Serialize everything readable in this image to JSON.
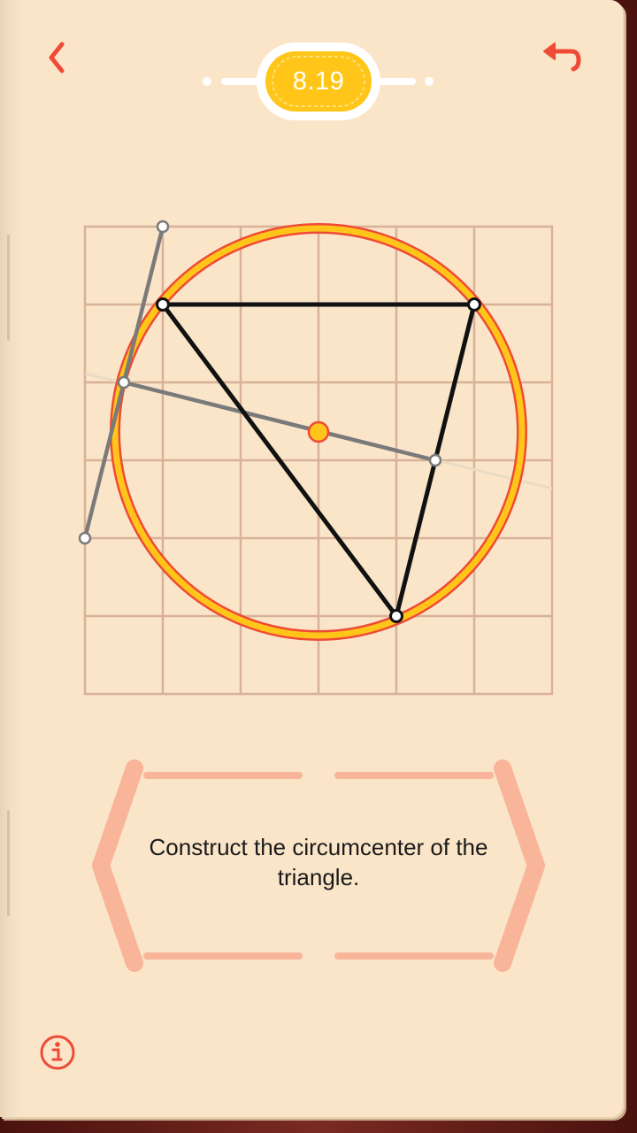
{
  "header": {
    "level": "8.19",
    "back_icon": "chevron-left-icon",
    "undo_icon": "undo-arrow-icon"
  },
  "task": {
    "text": "Construct the circumcenter of the triangle."
  },
  "footer": {
    "info_icon": "info-icon"
  },
  "colors": {
    "page": "#fae5c8",
    "grid": "#d8b298",
    "accent": "#ef4a36",
    "gold": "#ffc619",
    "circle_fill_ring": "#ffd23a",
    "triangle": "#111111",
    "construction_line": "#7a7a7a",
    "banner": "#f8b59a"
  }
}
